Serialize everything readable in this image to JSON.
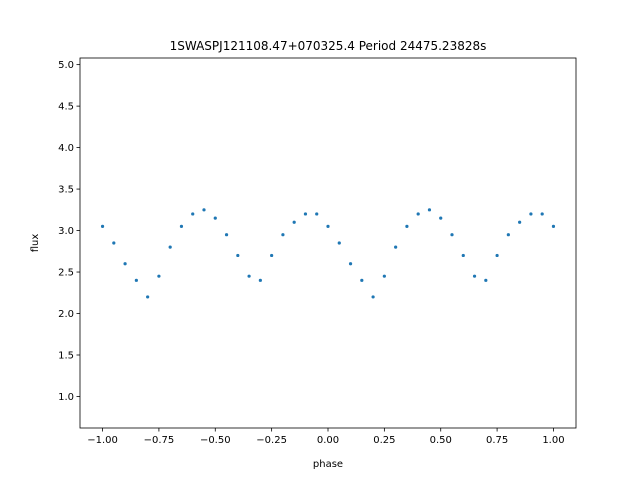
{
  "chart_data": {
    "type": "scatter",
    "title": "1SWASPJ121108.47+070325.4 Period 24475.23828s",
    "xlabel": "phase",
    "ylabel": "flux",
    "xlim": [
      -1.1,
      1.1
    ],
    "ylim": [
      0.62,
      5.08
    ],
    "xticks": [
      -1.0,
      -0.75,
      -0.5,
      -0.25,
      0.0,
      0.25,
      0.5,
      0.75,
      1.0
    ],
    "xtick_labels": [
      "−1.00",
      "−0.75",
      "−0.50",
      "−0.25",
      "0.00",
      "0.25",
      "0.50",
      "0.75",
      "1.00"
    ],
    "yticks": [
      1.0,
      1.5,
      2.0,
      2.5,
      3.0,
      3.5,
      4.0,
      4.5,
      5.0
    ],
    "ytick_labels": [
      "1.0",
      "1.5",
      "2.0",
      "2.5",
      "3.0",
      "3.5",
      "4.0",
      "4.5",
      "5.0"
    ],
    "grid": false,
    "marker_color": "#1f77b4",
    "series": [
      {
        "name": "",
        "x": [
          -1.0,
          -0.95,
          -0.9,
          -0.85,
          -0.8,
          -0.75,
          -0.7,
          -0.65,
          -0.6,
          -0.55,
          -0.5,
          -0.45,
          -0.4,
          -0.35,
          -0.3,
          -0.25,
          -0.2,
          -0.15,
          -0.1,
          -0.05,
          0.0,
          0.05,
          0.1,
          0.15,
          0.2,
          0.25,
          0.3,
          0.35,
          0.4,
          0.45,
          0.5,
          0.55,
          0.6,
          0.65,
          0.7,
          0.75,
          0.8,
          0.85,
          0.9,
          0.95,
          1.0
        ],
        "y": [
          3.05,
          2.85,
          2.6,
          2.4,
          2.2,
          2.45,
          2.8,
          3.05,
          3.2,
          3.25,
          3.15,
          2.95,
          2.7,
          2.45,
          2.4,
          2.7,
          2.95,
          3.1,
          3.2,
          3.2,
          3.05,
          2.85,
          2.6,
          2.4,
          2.2,
          2.45,
          2.8,
          3.05,
          3.2,
          3.25,
          3.15,
          2.95,
          2.7,
          2.45,
          2.4,
          2.7,
          2.95,
          3.1,
          3.2,
          3.2,
          3.05
        ]
      }
    ]
  }
}
